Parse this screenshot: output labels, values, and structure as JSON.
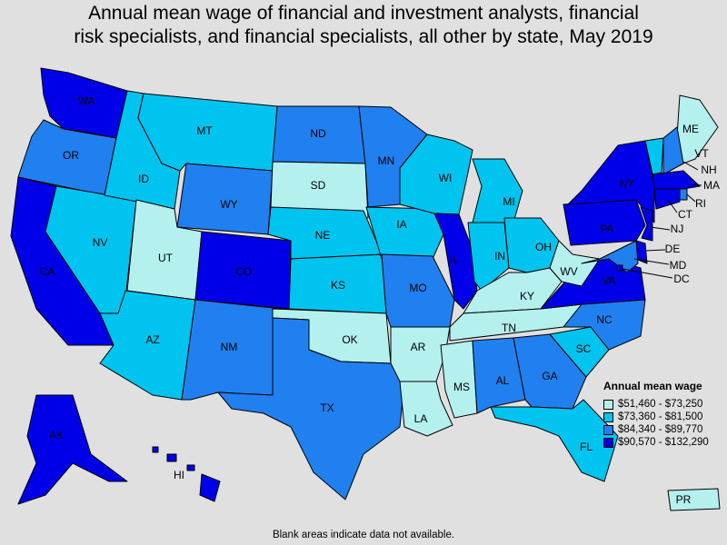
{
  "title": "Annual mean wage of financial and investment analysts, financial\nrisk specialists, and financial specialists, all other by state, May 2019",
  "legend": {
    "title": "Annual mean wage",
    "items": [
      {
        "label": "$51,460 - $73,250",
        "color": "#b4f0ee"
      },
      {
        "label": "$73,360 - $81,500",
        "color": "#00c4f0"
      },
      {
        "label": "$84,340 - $89,770",
        "color": "#2080f0"
      },
      {
        "label": "$90,570 - $132,290",
        "color": "#0000e8"
      }
    ]
  },
  "footnote": "Blank areas indicate data not available.",
  "states": {
    "WA": {
      "label": "WA",
      "bin": 3
    },
    "OR": {
      "label": "OR",
      "bin": 2
    },
    "CA": {
      "label": "CA",
      "bin": 3
    },
    "NV": {
      "label": "NV",
      "bin": 1
    },
    "ID": {
      "label": "ID",
      "bin": 1
    },
    "MT": {
      "label": "MT",
      "bin": 1
    },
    "WY": {
      "label": "WY",
      "bin": 2
    },
    "UT": {
      "label": "UT",
      "bin": 0
    },
    "AZ": {
      "label": "AZ",
      "bin": 1
    },
    "CO": {
      "label": "CO",
      "bin": 3
    },
    "NM": {
      "label": "NM",
      "bin": 2
    },
    "ND": {
      "label": "ND",
      "bin": 2
    },
    "SD": {
      "label": "SD",
      "bin": 0
    },
    "NE": {
      "label": "NE",
      "bin": 1
    },
    "KS": {
      "label": "KS",
      "bin": 1
    },
    "OK": {
      "label": "OK",
      "bin": 0
    },
    "TX": {
      "label": "TX",
      "bin": 2
    },
    "MN": {
      "label": "MN",
      "bin": 2
    },
    "IA": {
      "label": "IA",
      "bin": 1
    },
    "MO": {
      "label": "MO",
      "bin": 2
    },
    "AR": {
      "label": "AR",
      "bin": 0
    },
    "LA": {
      "label": "LA",
      "bin": 0
    },
    "WI": {
      "label": "WI",
      "bin": 1
    },
    "IL": {
      "label": "IL",
      "bin": 3
    },
    "MI": {
      "label": "MI",
      "bin": 1
    },
    "IN": {
      "label": "IN",
      "bin": 1
    },
    "OH": {
      "label": "OH",
      "bin": 1
    },
    "KY": {
      "label": "KY",
      "bin": 0
    },
    "TN": {
      "label": "TN",
      "bin": 0
    },
    "MS": {
      "label": "MS",
      "bin": 0
    },
    "AL": {
      "label": "AL",
      "bin": 2
    },
    "GA": {
      "label": "GA",
      "bin": 2
    },
    "FL": {
      "label": "FL",
      "bin": 1
    },
    "SC": {
      "label": "SC",
      "bin": 1
    },
    "NC": {
      "label": "NC",
      "bin": 2
    },
    "VA": {
      "label": "VA",
      "bin": 3
    },
    "WV": {
      "label": "WV",
      "bin": 0
    },
    "PA": {
      "label": "PA",
      "bin": 3
    },
    "NY": {
      "label": "NY",
      "bin": 3
    },
    "ME": {
      "label": "ME",
      "bin": 0
    },
    "VT": {
      "label": "VT",
      "bin": 1
    },
    "NH": {
      "label": "NH",
      "bin": 2
    },
    "MA": {
      "label": "MA",
      "bin": 3
    },
    "RI": {
      "label": "RI",
      "bin": 2
    },
    "CT": {
      "label": "CT",
      "bin": 3
    },
    "NJ": {
      "label": "NJ",
      "bin": 3
    },
    "DE": {
      "label": "DE",
      "bin": 3
    },
    "MD": {
      "label": "MD",
      "bin": 2
    },
    "DC": {
      "label": "DC",
      "bin": 3
    },
    "AK": {
      "label": "AK",
      "bin": 3
    },
    "HI": {
      "label": "HI",
      "bin": 3
    },
    "PR": {
      "label": "PR",
      "bin": 0
    }
  }
}
